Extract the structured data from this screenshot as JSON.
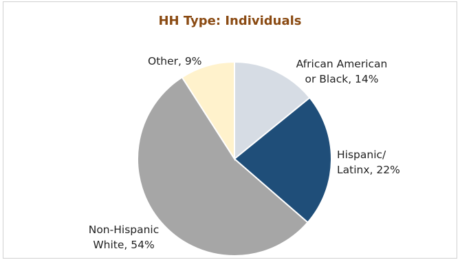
{
  "chart_data": {
    "type": "pie",
    "title": "HH Type: Individuals",
    "categories": [
      "African American or Black",
      "Hispanic/ Latinx",
      "Non-Hispanic White",
      "Other"
    ],
    "values": [
      14,
      22,
      54,
      9
    ],
    "labels": [
      {
        "lines": [
          "African American",
          "or Black, 14%"
        ]
      },
      {
        "lines": [
          "Hispanic/",
          "Latinx, 22%"
        ]
      },
      {
        "lines": [
          "Non-Hispanic",
          "White, 54%"
        ]
      },
      {
        "lines": [
          "Other, 9%"
        ]
      }
    ],
    "colors": [
      "#d6dce4",
      "#1f4e79",
      "#a6a6a6",
      "#fff2cc"
    ],
    "legend": "none"
  }
}
